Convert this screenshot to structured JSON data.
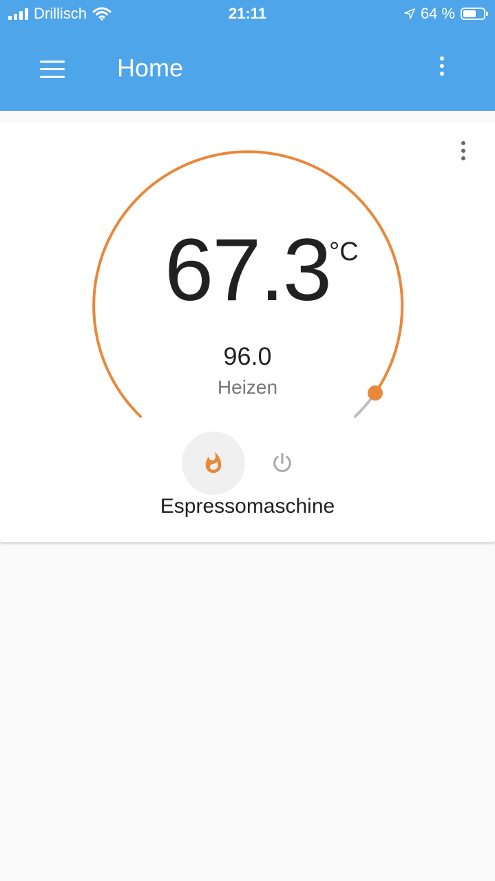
{
  "status_bar": {
    "carrier": "Drillisch",
    "time": "21:11",
    "battery_text": "64 %",
    "battery_level": 0.64,
    "icons": [
      "signal-icon",
      "wifi-icon",
      "location-arrow-icon",
      "battery-icon"
    ]
  },
  "app_bar": {
    "title": "Home",
    "menu_icon": "hamburger-menu-icon",
    "overflow_icon": "more-vertical-icon",
    "color": "#4fa5ea"
  },
  "thermostat_card": {
    "current_temperature": "67.3",
    "unit": "°C",
    "target_temperature": "96.0",
    "target_value": 96.0,
    "hvac_action": "Heizen",
    "name": "Espressomaschine",
    "accent_color": "#e8883a",
    "modes": [
      {
        "icon": "fire-icon",
        "active": true
      },
      {
        "icon": "power-icon",
        "active": false
      }
    ]
  }
}
